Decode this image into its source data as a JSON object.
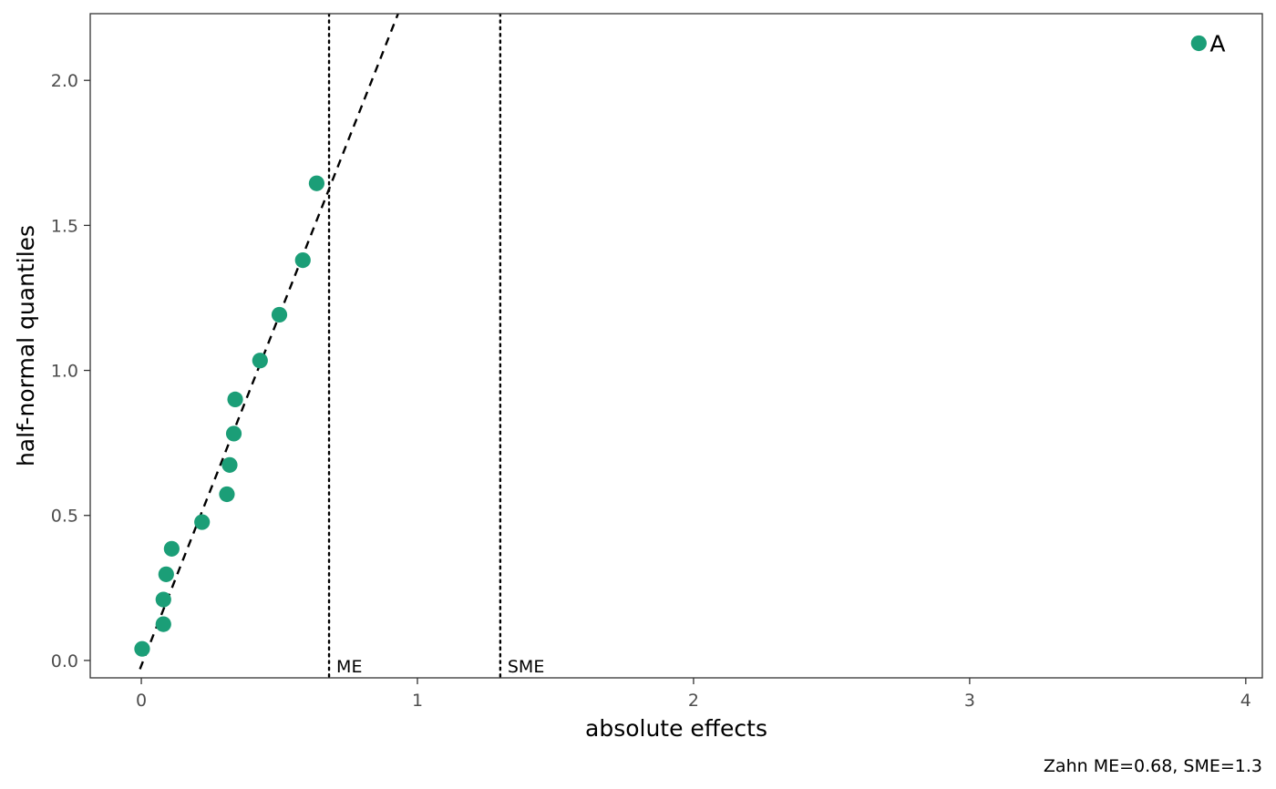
{
  "chart_data": {
    "type": "scatter",
    "xlabel": "absolute effects",
    "ylabel": "half-normal quantiles",
    "caption": "Zahn ME=0.68, SME=1.3",
    "xlim": [
      -0.185,
      4.06
    ],
    "ylim": [
      -0.06,
      2.23
    ],
    "x_ticks": [
      0,
      1,
      2,
      3,
      4
    ],
    "x_tick_labels": [
      "0",
      "1",
      "2",
      "3",
      "4"
    ],
    "y_ticks": [
      0.0,
      0.5,
      1.0,
      1.5,
      2.0
    ],
    "y_tick_labels": [
      "0.0",
      "0.5",
      "1.0",
      "1.5",
      "2.0"
    ],
    "grid": false,
    "point_color": "#1b9e77",
    "points": [
      {
        "x": 0.003,
        "y": 0.04
      },
      {
        "x": 0.08,
        "y": 0.125
      },
      {
        "x": 0.08,
        "y": 0.21
      },
      {
        "x": 0.09,
        "y": 0.297
      },
      {
        "x": 0.11,
        "y": 0.385
      },
      {
        "x": 0.22,
        "y": 0.477
      },
      {
        "x": 0.31,
        "y": 0.573
      },
      {
        "x": 0.32,
        "y": 0.674
      },
      {
        "x": 0.335,
        "y": 0.782
      },
      {
        "x": 0.34,
        "y": 0.9
      },
      {
        "x": 0.43,
        "y": 1.034
      },
      {
        "x": 0.5,
        "y": 1.192
      },
      {
        "x": 0.585,
        "y": 1.38
      },
      {
        "x": 0.635,
        "y": 1.645
      },
      {
        "x": 3.83,
        "y": 2.128
      }
    ],
    "point_labels": [
      {
        "text": "A",
        "x": 3.83,
        "y": 2.128
      }
    ],
    "reference_line": {
      "style": "dashed",
      "from": {
        "x": -0.005,
        "y": -0.03
      },
      "to": {
        "x": 0.93,
        "y": 2.23
      }
    },
    "vlines": [
      {
        "x": 0.68,
        "label": "ME",
        "style": "dotted"
      },
      {
        "x": 1.3,
        "label": "SME",
        "style": "dotted"
      }
    ]
  }
}
